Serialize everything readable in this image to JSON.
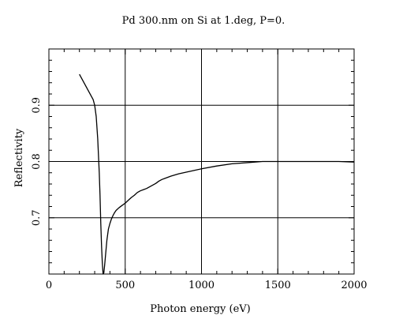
{
  "chart_data": {
    "type": "line",
    "title": "Pd 300.nm on Si at 1.deg, P=0.",
    "xlabel": "Photon energy (eV)",
    "ylabel": "Reflectivity",
    "xlim": [
      0,
      2000
    ],
    "ylim": [
      0.6,
      1.0
    ],
    "x_ticks": [
      0,
      500,
      1000,
      1500,
      2000
    ],
    "x_tick_labels": [
      "0",
      "500",
      "1000",
      "1500",
      "2000"
    ],
    "y_ticks": [
      0.7,
      0.8,
      0.9
    ],
    "y_tick_labels": [
      "0.7",
      "0.8",
      "0.9"
    ],
    "grid": true,
    "series": [
      {
        "color": "#000000",
        "x": [
          200,
          220,
          240,
          260,
          280,
          290,
          300,
          310,
          320,
          330,
          335,
          340,
          345,
          350,
          355,
          360,
          365,
          370,
          375,
          380,
          390,
          400,
          410,
          420,
          430,
          440,
          460,
          480,
          500,
          520,
          540,
          560,
          580,
          600,
          620,
          640,
          660,
          680,
          700,
          720,
          740,
          760,
          800,
          850,
          900,
          950,
          1000,
          1100,
          1200,
          1300,
          1400,
          1500,
          1600,
          1700,
          1800,
          1900,
          2000
        ],
        "y": [
          0.955,
          0.945,
          0.935,
          0.925,
          0.915,
          0.91,
          0.9,
          0.88,
          0.84,
          0.78,
          0.74,
          0.69,
          0.65,
          0.62,
          0.6,
          0.602,
          0.615,
          0.63,
          0.645,
          0.66,
          0.68,
          0.69,
          0.698,
          0.704,
          0.709,
          0.713,
          0.718,
          0.722,
          0.726,
          0.731,
          0.736,
          0.74,
          0.745,
          0.748,
          0.75,
          0.752,
          0.755,
          0.758,
          0.761,
          0.765,
          0.768,
          0.77,
          0.774,
          0.778,
          0.781,
          0.784,
          0.787,
          0.792,
          0.796,
          0.798,
          0.8,
          0.8,
          0.8,
          0.8,
          0.8,
          0.8,
          0.799
        ]
      }
    ]
  }
}
